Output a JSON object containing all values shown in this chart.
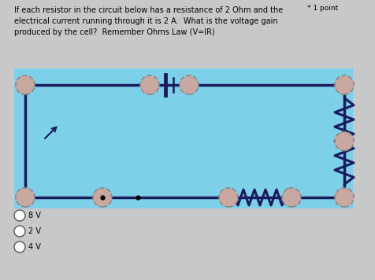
{
  "title_text": "If each resistor in the circuit below has a resistance of 2 Ohm and the\nelectrical current running through it is 2 A.  What is the voltage gain\nproduced by the cell?  Remember Ohms Law (V=IR)",
  "point_label": "* 1 point",
  "bg_color": "#7ecfe8",
  "outer_bg": "#c8c8c8",
  "options": [
    "8 V",
    "2 V",
    "4 V"
  ],
  "wire_color": "#1a1a5e",
  "node_fill": "#c8a8a0",
  "node_edge": "#888888"
}
